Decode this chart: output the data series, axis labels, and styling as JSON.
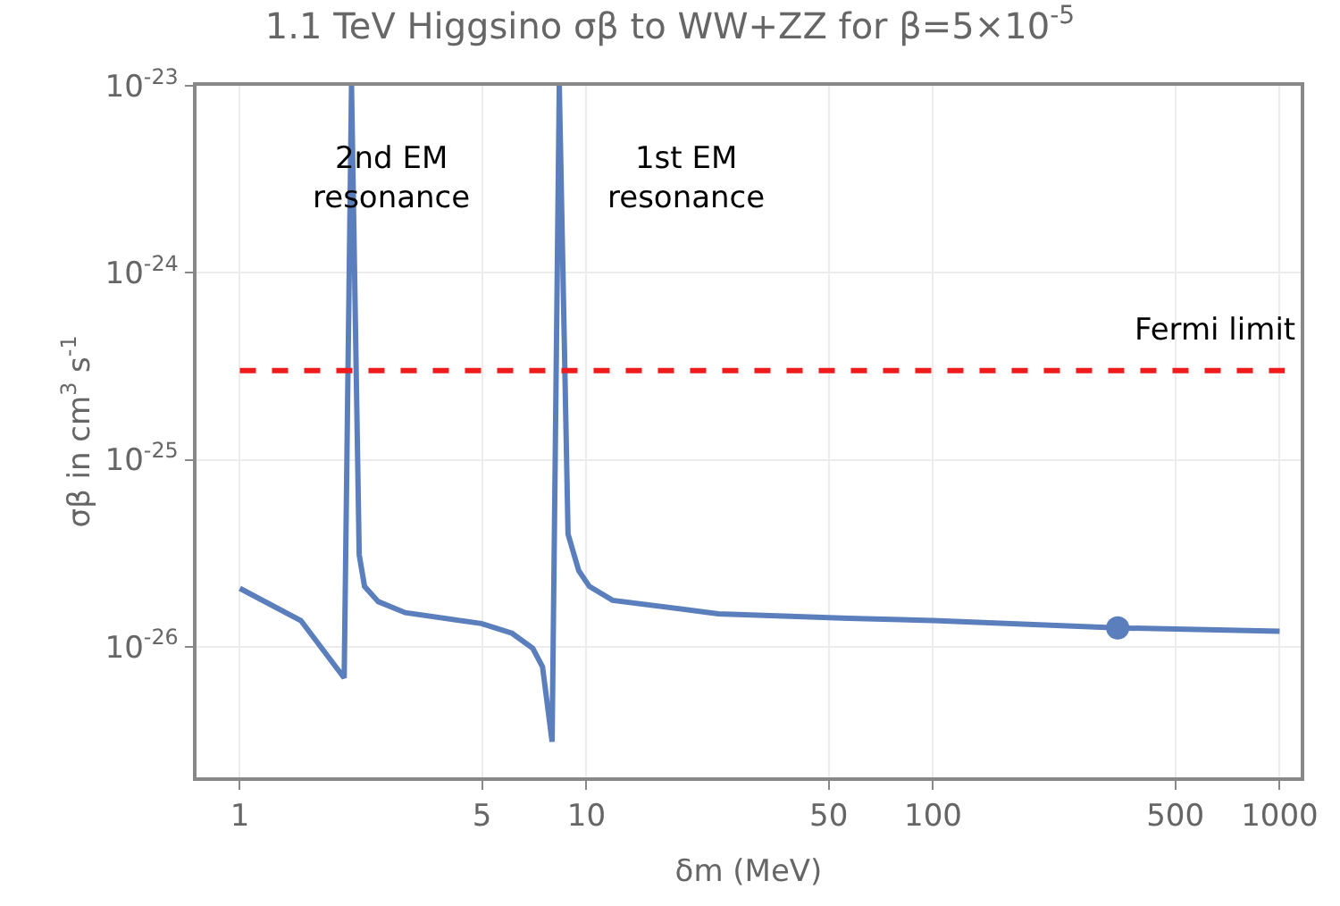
{
  "chart_data": {
    "type": "line",
    "title": "1.1 TeV Higgsino σβ to WW+ZZ for β=5×10$^{-5}$",
    "xlabel": "δm (MeV)",
    "ylabel": "σβ in cm$^{3}$ s$^{-1}$",
    "log": "xy",
    "grid": true,
    "xlim": [
      0.75,
      1150
    ],
    "xticks": [
      1,
      5,
      10,
      50,
      100,
      500,
      1000
    ],
    "ylim": [
      2e-27,
      1e-23
    ],
    "yticks": [
      {
        "value": 1e-23,
        "label": "10$^{-23}$"
      },
      {
        "value": 1e-24,
        "label": "10$^{-24}$"
      },
      {
        "value": 1e-25,
        "label": "10$^{-25}$"
      },
      {
        "value": 1e-26,
        "label": "10$^{-26}$"
      }
    ],
    "series": [
      {
        "color": "#5b7fbd",
        "marker": "none",
        "line_style": "solid",
        "x": [
          1,
          1.5,
          2.0,
          2.1,
          2.21,
          2.29,
          2.51,
          3.0,
          4.98,
          6.1,
          7.0,
          7.47,
          7.96,
          8.35,
          8.85,
          9.5,
          10.2,
          11.9,
          24,
          57,
          100,
          341,
          1000
        ],
        "values": [
          2.05e-26,
          1.38e-26,
          6.8e-27,
          1e-23,
          3.1e-26,
          2.1e-26,
          1.74e-26,
          1.52e-26,
          1.33e-26,
          1.18e-26,
          9.8e-27,
          7.8e-27,
          3.1e-27,
          1e-23,
          4e-26,
          2.55e-26,
          2.1e-26,
          1.77e-26,
          1.5e-26,
          1.42e-26,
          1.38e-26,
          1.26e-26,
          1.21e-26
        ]
      },
      {
        "type": "scatter",
        "color": "#5b7fbd",
        "marker": "circle",
        "x": [
          341
        ],
        "values": [
          1.26e-26
        ]
      }
    ],
    "ref_lines": [
      {
        "axis": "y",
        "value": 3e-25,
        "label": "Fermi limit",
        "color": "#ee1c1c",
        "line_style": "dashed"
      }
    ],
    "annotations": [
      "2nd EM resonance",
      "1st EM resonance"
    ]
  }
}
